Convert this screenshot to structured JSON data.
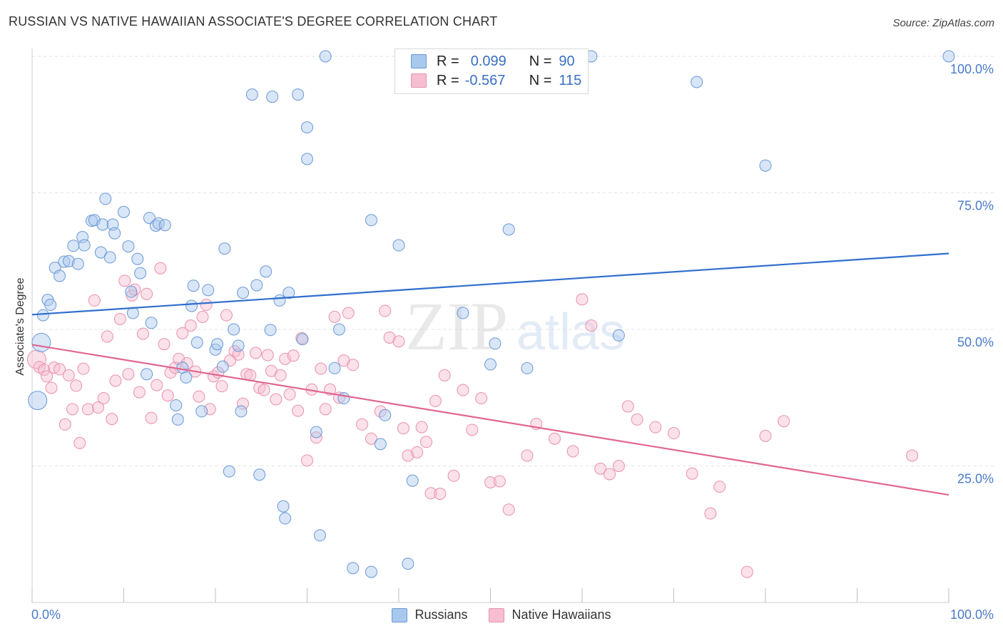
{
  "title": "RUSSIAN VS NATIVE HAWAIIAN ASSOCIATE'S DEGREE CORRELATION CHART",
  "source": "Source: ZipAtlas.com",
  "legend_box": {
    "rows": [
      {
        "r_label": "R =",
        "r_value": "0.099",
        "n_label": "N =",
        "n_value": "90"
      },
      {
        "r_label": "R =",
        "r_value": "-0.567",
        "n_label": "N =",
        "n_value": "115"
      }
    ]
  },
  "colors": {
    "russians_fill": "#a9c8ee",
    "russians_stroke": "#6b98d6",
    "russians_line": "#2f6fcf",
    "hawaiians_fill": "#f7bdd0",
    "hawaiians_stroke": "#e890ae",
    "hawaiians_line": "#e06691",
    "axis_text": "#4a7bc8"
  },
  "watermark": {
    "zip": "ZIP",
    "atlas": "atlas"
  },
  "chart_data": {
    "type": "scatter",
    "ylabel": "Associate's Degree",
    "xlabel": "",
    "x_tick_labels": [
      "0.0%",
      "100.0%"
    ],
    "y_tick_labels": [
      "100.0%",
      "75.0%",
      "50.0%",
      "25.0%"
    ],
    "xlim": [
      0,
      100
    ],
    "ylim": [
      0,
      100
    ],
    "grid": true,
    "legend_position": "bottom",
    "series": [
      {
        "name": "Russians",
        "trend": [
          [
            0,
            52.7
          ],
          [
            100,
            63.9
          ]
        ],
        "points": [
          [
            1,
            47.6
          ],
          [
            0.6,
            37.0
          ],
          [
            1.7,
            55.4
          ],
          [
            1.2,
            52.6
          ],
          [
            2,
            54.5
          ],
          [
            2.5,
            61.3
          ],
          [
            3,
            59.8
          ],
          [
            3.5,
            62.4
          ],
          [
            4,
            62.5
          ],
          [
            4.5,
            65.3
          ],
          [
            5,
            62
          ],
          [
            5.5,
            66.9
          ],
          [
            5.7,
            65.4
          ],
          [
            6.5,
            69.9
          ],
          [
            6.8,
            70
          ],
          [
            7.5,
            64.1
          ],
          [
            7.7,
            69.2
          ],
          [
            8,
            73.9
          ],
          [
            8.5,
            63.2
          ],
          [
            8.8,
            69.2
          ],
          [
            9,
            67.6
          ],
          [
            10,
            71.5
          ],
          [
            10.5,
            65.2
          ],
          [
            10.8,
            56.9
          ],
          [
            11,
            53
          ],
          [
            11.5,
            62.9
          ],
          [
            11.8,
            60.3
          ],
          [
            12.8,
            70.4
          ],
          [
            13,
            51.2
          ],
          [
            13.5,
            69
          ],
          [
            13.8,
            69.4
          ],
          [
            14.5,
            69.1
          ],
          [
            12.5,
            41.8
          ],
          [
            15.7,
            36.1
          ],
          [
            15.9,
            33.5
          ],
          [
            16.4,
            43
          ],
          [
            16.8,
            41.2
          ],
          [
            17.4,
            54.3
          ],
          [
            17.6,
            58
          ],
          [
            18,
            47.6
          ],
          [
            18.5,
            35
          ],
          [
            19.2,
            57.2
          ],
          [
            20,
            46.3
          ],
          [
            20.2,
            47.3
          ],
          [
            20.8,
            43.2
          ],
          [
            21,
            64.8
          ],
          [
            21.5,
            24
          ],
          [
            22,
            50
          ],
          [
            22.5,
            47
          ],
          [
            22.8,
            35
          ],
          [
            23,
            56.7
          ],
          [
            24,
            93
          ],
          [
            24.5,
            58.1
          ],
          [
            24.8,
            23.4
          ],
          [
            25.5,
            60.6
          ],
          [
            26,
            49.9
          ],
          [
            26.2,
            92.6
          ],
          [
            27,
            55.3
          ],
          [
            27.4,
            17.6
          ],
          [
            27.6,
            15.4
          ],
          [
            28,
            56.7
          ],
          [
            29,
            93
          ],
          [
            29.5,
            48.2
          ],
          [
            30,
            87
          ],
          [
            30,
            81.2
          ],
          [
            31,
            31.2
          ],
          [
            31.4,
            12.3
          ],
          [
            32,
            100
          ],
          [
            33,
            42.9
          ],
          [
            33.5,
            50
          ],
          [
            34,
            37.4
          ],
          [
            35,
            6.3
          ],
          [
            37,
            5.6
          ],
          [
            37,
            70
          ],
          [
            38,
            29
          ],
          [
            38.5,
            34.3
          ],
          [
            40,
            65.4
          ],
          [
            41,
            7.1
          ],
          [
            41.5,
            22.3
          ],
          [
            47,
            53
          ],
          [
            50,
            43.6
          ],
          [
            50.5,
            47.4
          ],
          [
            52,
            68.3
          ],
          [
            54,
            42.9
          ],
          [
            59,
            100
          ],
          [
            61,
            100
          ],
          [
            64,
            48.9
          ],
          [
            72.5,
            95.3
          ],
          [
            80,
            80
          ],
          [
            100,
            100
          ]
        ]
      },
      {
        "name": "Native Hawaiians",
        "trend": [
          [
            0,
            47.2
          ],
          [
            100,
            19.7
          ]
        ],
        "points": [
          [
            0.5,
            44.5
          ],
          [
            0.8,
            43.1
          ],
          [
            1.3,
            42.6
          ],
          [
            1.6,
            41.4
          ],
          [
            2.1,
            39.3
          ],
          [
            2.4,
            43
          ],
          [
            3,
            42.7
          ],
          [
            3.6,
            32.6
          ],
          [
            4,
            41.6
          ],
          [
            4.4,
            35.4
          ],
          [
            4.8,
            39.7
          ],
          [
            5.2,
            29.2
          ],
          [
            5.6,
            42.8
          ],
          [
            6.1,
            35.4
          ],
          [
            6.8,
            55.3
          ],
          [
            7.2,
            35.7
          ],
          [
            7.8,
            37.4
          ],
          [
            8.2,
            48.7
          ],
          [
            8.7,
            33.6
          ],
          [
            9.1,
            40.6
          ],
          [
            9.6,
            51.9
          ],
          [
            10.1,
            58.9
          ],
          [
            10.5,
            41.8
          ],
          [
            10.9,
            56.2
          ],
          [
            11.2,
            57.3
          ],
          [
            11.7,
            38.5
          ],
          [
            12.1,
            49.2
          ],
          [
            12.5,
            56.5
          ],
          [
            13,
            33.8
          ],
          [
            13.6,
            39.8
          ],
          [
            14,
            61.2
          ],
          [
            14.4,
            47.3
          ],
          [
            14.8,
            37.9
          ],
          [
            15.1,
            42.1
          ],
          [
            15.6,
            43
          ],
          [
            16,
            44.6
          ],
          [
            16.4,
            49.3
          ],
          [
            16.9,
            43.8
          ],
          [
            17.3,
            50.7
          ],
          [
            17.8,
            42.3
          ],
          [
            18.2,
            37.7
          ],
          [
            18.6,
            52.3
          ],
          [
            19,
            54.5
          ],
          [
            19.4,
            35.4
          ],
          [
            19.8,
            41.4
          ],
          [
            20.3,
            42.1
          ],
          [
            20.7,
            39.6
          ],
          [
            21.2,
            52.6
          ],
          [
            21.6,
            44.3
          ],
          [
            22.1,
            46
          ],
          [
            22.5,
            45.4
          ],
          [
            23,
            36.4
          ],
          [
            23.4,
            41.8
          ],
          [
            23.8,
            41.6
          ],
          [
            24.4,
            45.7
          ],
          [
            24.8,
            39.3
          ],
          [
            25.3,
            38.9
          ],
          [
            25.7,
            45.3
          ],
          [
            26.1,
            42.4
          ],
          [
            26.6,
            37.2
          ],
          [
            27.1,
            41.6
          ],
          [
            27.6,
            44.6
          ],
          [
            28.1,
            38.1
          ],
          [
            28.5,
            45.2
          ],
          [
            29,
            35.1
          ],
          [
            29.4,
            48.4
          ],
          [
            30,
            26
          ],
          [
            30.5,
            39
          ],
          [
            31,
            30.2
          ],
          [
            31.5,
            42.8
          ],
          [
            32,
            35.4
          ],
          [
            32.5,
            39
          ],
          [
            33,
            52.3
          ],
          [
            33.5,
            37.5
          ],
          [
            34,
            44.3
          ],
          [
            34.5,
            53
          ],
          [
            35,
            43.5
          ],
          [
            36,
            32.6
          ],
          [
            37,
            30
          ],
          [
            38,
            35
          ],
          [
            38.5,
            53.4
          ],
          [
            39,
            48.5
          ],
          [
            40,
            47.8
          ],
          [
            40.5,
            31.9
          ],
          [
            41,
            26.9
          ],
          [
            42,
            27.5
          ],
          [
            42.5,
            32.1
          ],
          [
            43,
            29.4
          ],
          [
            43.5,
            20
          ],
          [
            44,
            36.9
          ],
          [
            44.5,
            19.9
          ],
          [
            45,
            41.6
          ],
          [
            46,
            23.2
          ],
          [
            47,
            38.9
          ],
          [
            48,
            31.6
          ],
          [
            49,
            37.4
          ],
          [
            50,
            22
          ],
          [
            51,
            22.2
          ],
          [
            52,
            17
          ],
          [
            54,
            26.9
          ],
          [
            55,
            32.7
          ],
          [
            57,
            30
          ],
          [
            59,
            27.7
          ],
          [
            60,
            55.5
          ],
          [
            61,
            50.7
          ],
          [
            62,
            24.5
          ],
          [
            63,
            23.5
          ],
          [
            64,
            25
          ],
          [
            65,
            35.9
          ],
          [
            66,
            33.5
          ],
          [
            68,
            32.1
          ],
          [
            70,
            31
          ],
          [
            72,
            23.6
          ],
          [
            74,
            16.3
          ],
          [
            75,
            21.2
          ],
          [
            78,
            5.6
          ],
          [
            80,
            30.5
          ],
          [
            82,
            33.2
          ],
          [
            96,
            26.9
          ]
        ]
      }
    ]
  },
  "bottom_legend": {
    "russians": "Russians",
    "hawaiians": "Native Hawaiians"
  }
}
